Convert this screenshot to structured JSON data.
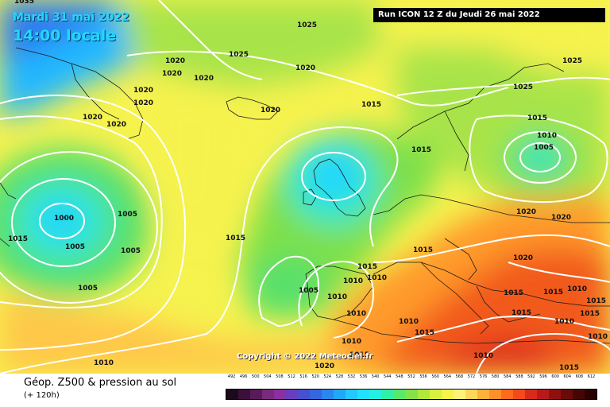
{
  "header": {
    "date_line": "Mardi 31 mai 2022",
    "time_line": "14:00 locale",
    "run_info": "Run ICON 12 Z du Jeudi 26 mai 2022"
  },
  "footer": {
    "title": "Géop. Z500 & pression au sol",
    "subtitle": "(+ 120h)",
    "scale_values": [
      "492",
      "496",
      "500",
      "504",
      "508",
      "512",
      "516",
      "520",
      "524",
      "528",
      "532",
      "536",
      "540",
      "544",
      "548",
      "552",
      "556",
      "560",
      "564",
      "568",
      "572",
      "576",
      "580",
      "584",
      "588",
      "592",
      "596",
      "600",
      "604",
      "608",
      "612"
    ],
    "scale_colors": [
      "#1a0a1a",
      "#3c0f3c",
      "#5a1a5a",
      "#7a2a7a",
      "#8c2fa0",
      "#6a3cc0",
      "#4650d0",
      "#3466e0",
      "#2a86f0",
      "#20a8f8",
      "#22c8ff",
      "#22e0ff",
      "#22f0e0",
      "#30f0a8",
      "#58e86a",
      "#86e04a",
      "#b0e83c",
      "#d8f040",
      "#f4f44a",
      "#fff07a",
      "#ffd65a",
      "#ffb23a",
      "#ff8f2a",
      "#ff6a1e",
      "#f24a1a",
      "#d82a1a",
      "#b81a1a",
      "#901010",
      "#6a0a0a",
      "#460606",
      "#2a0202"
    ]
  },
  "copyright": "Copyright © 2022 Meteociel.fr",
  "map": {
    "region": "Europe / North Atlantic",
    "low_centres": [
      "1000",
      "1005"
    ],
    "isobar_labels": [
      "1035",
      "1025",
      "1025",
      "1020",
      "1020",
      "1020",
      "1025",
      "1020",
      "1020",
      "1020",
      "1020",
      "1020",
      "1015",
      "1020",
      "1025",
      "1015",
      "1015",
      "1010",
      "1005",
      "1000",
      "1005",
      "1005",
      "1005",
      "1015",
      "1015",
      "1020",
      "1020",
      "1015",
      "1020",
      "1015",
      "1005",
      "1010",
      "1010",
      "1005",
      "1010",
      "1010",
      "1010",
      "1015",
      "1015",
      "1015",
      "1010",
      "1015",
      "1010",
      "1015",
      "1010",
      "1015",
      "1015",
      "1010",
      "1010",
      "1020",
      "1015",
      "1010"
    ]
  }
}
